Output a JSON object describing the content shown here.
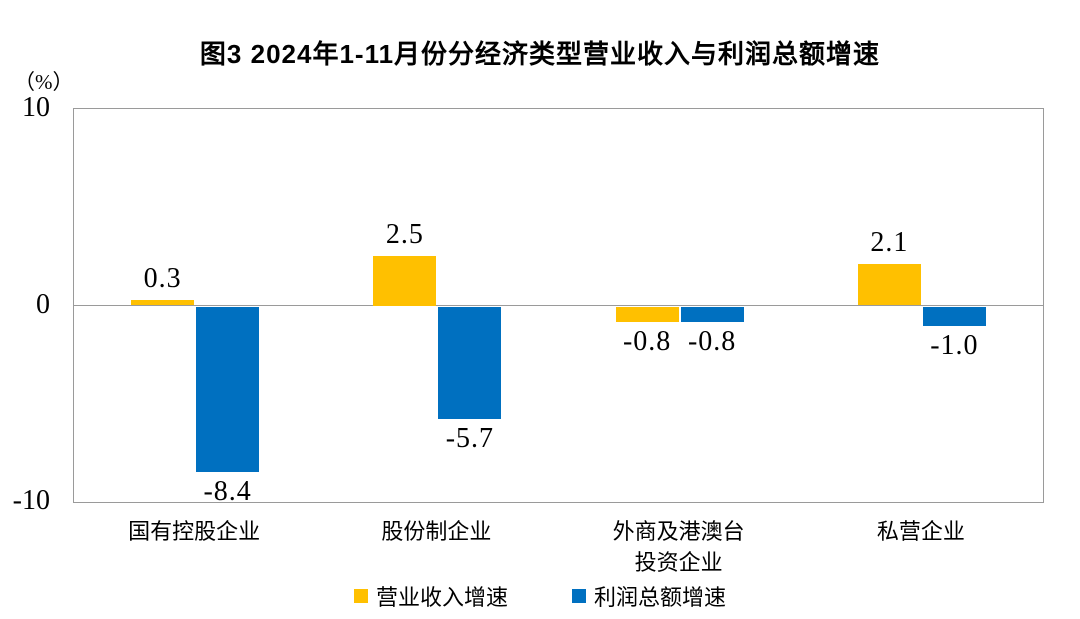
{
  "chart_data": {
    "type": "bar",
    "title": "图3 2024年1-11月份分经济类型营业收入与利润总额增速",
    "unit_label": "（%）",
    "categories": [
      "国有控股企业",
      "股份制企业",
      "外商及港澳台\n投资企业",
      "私营企业"
    ],
    "series": [
      {
        "name": "营业收入增速",
        "color": "#FFC000",
        "values": [
          0.3,
          2.5,
          -0.8,
          2.1
        ],
        "labels": [
          "0.3",
          "2.5",
          "-0.8",
          "2.1"
        ]
      },
      {
        "name": "利润总额增速",
        "color": "#0070C0",
        "values": [
          -8.4,
          -5.7,
          -0.8,
          -1.0
        ],
        "labels": [
          "-8.4",
          "-5.7",
          "-0.8",
          "-1.0"
        ]
      }
    ],
    "ylim": [
      -10,
      10
    ],
    "yticks": [
      "10",
      "0",
      "-10"
    ],
    "grid": false,
    "legend_position": "bottom",
    "colors": {
      "axis": "#9a9a9a",
      "text": "#000000",
      "background": "#ffffff"
    }
  }
}
